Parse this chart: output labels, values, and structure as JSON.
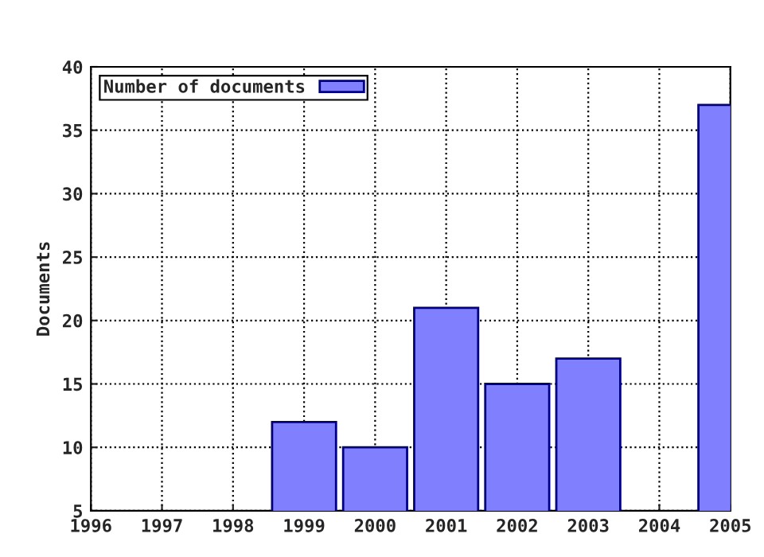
{
  "chart_data": {
    "type": "bar",
    "ylabel": "Documents",
    "x": [
      1999,
      2000,
      2001,
      2002,
      2003,
      2005
    ],
    "series": [
      {
        "name": "Number of documents",
        "color": "#8080ff",
        "values": [
          12,
          10,
          21,
          15,
          17,
          37
        ]
      }
    ],
    "xlim": [
      1996,
      2005
    ],
    "xticks": [
      1996,
      1997,
      1998,
      1999,
      2000,
      2001,
      2002,
      2003,
      2004,
      2005
    ],
    "ylim": [
      5,
      40
    ],
    "yticks": [
      5,
      10,
      15,
      20,
      25,
      30,
      35,
      40
    ],
    "grid": true,
    "legend": "top left"
  }
}
